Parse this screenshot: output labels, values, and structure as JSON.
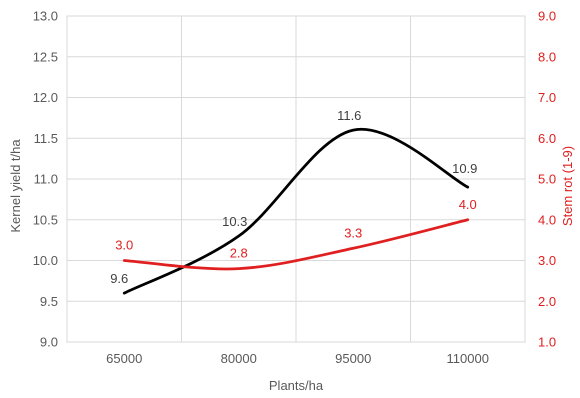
{
  "chart_data": {
    "type": "line",
    "categories": [
      "65000",
      "80000",
      "95000",
      "110000"
    ],
    "xlabel": "Plants/ha",
    "y_left": {
      "label": "Kernel yield t/ha",
      "lim": [
        9.0,
        13.0
      ],
      "ticks": [
        "9.0",
        "9.5",
        "10.0",
        "10.5",
        "11.0",
        "11.5",
        "12.0",
        "12.5",
        "13.0"
      ]
    },
    "y_right": {
      "label": "Stem rot (1-9)",
      "lim": [
        1.0,
        9.0
      ],
      "ticks": [
        "1.0",
        "2.0",
        "3.0",
        "4.0",
        "5.0",
        "6.0",
        "7.0",
        "8.0",
        "9.0"
      ]
    },
    "grid": true,
    "series": [
      {
        "axis": "left",
        "color": "#000000",
        "values": [
          9.6,
          10.3,
          11.6,
          10.9
        ],
        "labels": [
          "9.6",
          "10.3",
          "11.6",
          "10.9"
        ]
      },
      {
        "axis": "right",
        "color": "#e02020",
        "values": [
          3.0,
          2.8,
          3.3,
          4.0
        ],
        "labels": [
          "3.0",
          "2.8",
          "3.3",
          "4.0"
        ]
      }
    ]
  }
}
